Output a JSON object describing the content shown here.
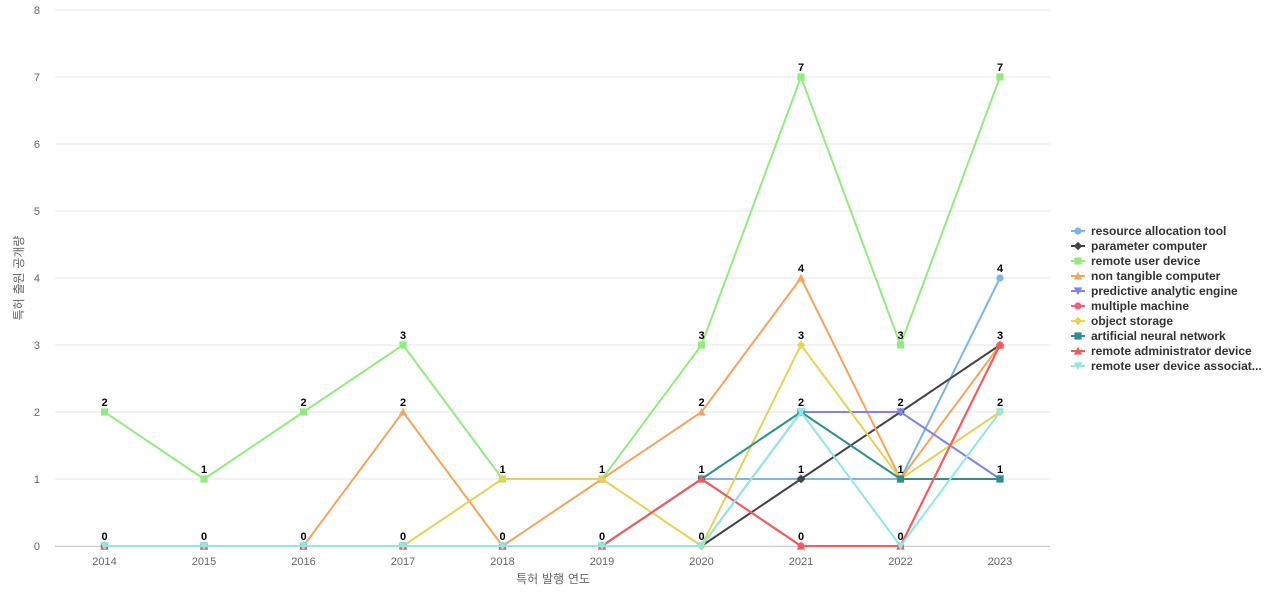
{
  "chart_data": {
    "type": "line",
    "title": "",
    "xlabel": "특허 발행 연도",
    "ylabel": "특허 출원 공개량",
    "x": [
      "2014",
      "2015",
      "2016",
      "2017",
      "2018",
      "2019",
      "2020",
      "2021",
      "2022",
      "2023"
    ],
    "yticks": [
      "0",
      "1",
      "2",
      "3",
      "4",
      "5",
      "6",
      "7",
      "8"
    ],
    "ylim": [
      0,
      8
    ],
    "grid": true,
    "legend_position": "right",
    "series": [
      {
        "name": "resource allocation tool",
        "color": "#7cb5ec",
        "marker": "circle",
        "values": [
          0,
          0,
          0,
          0,
          0,
          0,
          1,
          1,
          1,
          4
        ]
      },
      {
        "name": "parameter computer",
        "color": "#434348",
        "marker": "diamond",
        "values": [
          0,
          0,
          0,
          0,
          0,
          0,
          0,
          1,
          2,
          3
        ]
      },
      {
        "name": "remote user device",
        "color": "#90ed7d",
        "marker": "square",
        "values": [
          2,
          1,
          2,
          3,
          1,
          1,
          3,
          7,
          3,
          7
        ]
      },
      {
        "name": "non tangible computer",
        "color": "#f7a35c",
        "marker": "triangle",
        "values": [
          0,
          0,
          0,
          2,
          0,
          1,
          2,
          4,
          1,
          3
        ]
      },
      {
        "name": "predictive analytic engine",
        "color": "#8085e9",
        "marker": "triangle-down",
        "values": [
          0,
          0,
          0,
          0,
          0,
          0,
          0,
          2,
          2,
          1
        ]
      },
      {
        "name": "multiple machine",
        "color": "#f15c80",
        "marker": "circle",
        "values": [
          0,
          0,
          0,
          0,
          0,
          0,
          1,
          0,
          0,
          3
        ]
      },
      {
        "name": "object storage",
        "color": "#e4d354",
        "marker": "diamond",
        "values": [
          0,
          0,
          0,
          0,
          1,
          1,
          0,
          3,
          1,
          2
        ]
      },
      {
        "name": "artificial neural network",
        "color": "#2b908f",
        "marker": "square",
        "values": [
          0,
          0,
          0,
          0,
          0,
          0,
          1,
          2,
          1,
          1
        ]
      },
      {
        "name": "remote administrator device",
        "color": "#f45b5b",
        "marker": "triangle",
        "values": [
          0,
          0,
          0,
          0,
          0,
          0,
          1,
          0,
          0,
          3
        ]
      },
      {
        "name": "remote user device associat...",
        "color": "#91e8e1",
        "marker": "triangle-down",
        "values": [
          0,
          0,
          0,
          0,
          0,
          0,
          0,
          2,
          0,
          2
        ]
      }
    ],
    "data_labels": [
      {
        "x": "2014",
        "value": "2"
      },
      {
        "x": "2014",
        "value": "0"
      },
      {
        "x": "2015",
        "value": "1"
      },
      {
        "x": "2015",
        "value": "0"
      },
      {
        "x": "2016",
        "value": "2"
      },
      {
        "x": "2016",
        "value": "0"
      },
      {
        "x": "2017",
        "value": "3"
      },
      {
        "x": "2017",
        "value": "2"
      },
      {
        "x": "2017",
        "value": "0"
      },
      {
        "x": "2018",
        "value": "1"
      },
      {
        "x": "2018",
        "value": "0"
      },
      {
        "x": "2019",
        "value": "1"
      },
      {
        "x": "2019",
        "value": "0"
      },
      {
        "x": "2020",
        "value": "3"
      },
      {
        "x": "2020",
        "value": "2"
      },
      {
        "x": "2020",
        "value": "1"
      },
      {
        "x": "2020",
        "value": "0"
      },
      {
        "x": "2021",
        "value": "7"
      },
      {
        "x": "2021",
        "value": "4"
      },
      {
        "x": "2021",
        "value": "3"
      },
      {
        "x": "2021",
        "value": "2"
      },
      {
        "x": "2021",
        "value": "1"
      },
      {
        "x": "2021",
        "value": "0"
      },
      {
        "x": "2022",
        "value": "3"
      },
      {
        "x": "2022",
        "value": "2"
      },
      {
        "x": "2022",
        "value": "1"
      },
      {
        "x": "2022",
        "value": "0"
      },
      {
        "x": "2023",
        "value": "7"
      },
      {
        "x": "2023",
        "value": "4"
      },
      {
        "x": "2023",
        "value": "3"
      },
      {
        "x": "2023",
        "value": "2"
      },
      {
        "x": "2023",
        "value": "1"
      }
    ]
  }
}
